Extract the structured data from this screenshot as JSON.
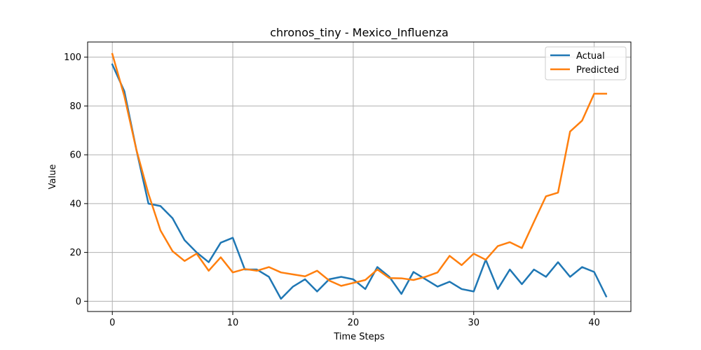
{
  "chart_data": {
    "type": "line",
    "title": "chronos_tiny - Mexico_Influenza",
    "xlabel": "Time Steps",
    "ylabel": "Value",
    "xlim": [
      -2.05,
      43.05
    ],
    "ylim": [
      -4.2,
      106.2
    ],
    "xticks": [
      0,
      10,
      20,
      30,
      40
    ],
    "yticks": [
      0,
      20,
      40,
      60,
      80,
      100
    ],
    "grid": true,
    "legend_position": "upper right",
    "x": [
      0,
      1,
      2,
      3,
      4,
      5,
      6,
      7,
      8,
      9,
      10,
      11,
      12,
      13,
      14,
      15,
      16,
      17,
      18,
      19,
      20,
      21,
      22,
      23,
      24,
      25,
      26,
      27,
      28,
      29,
      30,
      31,
      32,
      33,
      34,
      35,
      36,
      37,
      38,
      39,
      40,
      41
    ],
    "series": [
      {
        "name": "Actual",
        "color": "#1f77b4",
        "values": [
          97,
          86,
          62,
          40,
          39,
          34,
          25,
          20,
          16,
          24,
          26,
          13,
          13,
          10,
          1,
          6,
          9,
          4,
          9,
          10,
          9,
          5,
          14,
          10,
          3,
          12,
          9,
          6,
          8,
          5,
          4,
          17,
          5,
          13,
          7,
          13,
          10,
          16,
          10,
          14,
          12,
          2
        ]
      },
      {
        "name": "Predicted",
        "color": "#ff7f0e",
        "values": [
          101.3,
          84,
          62,
          44,
          29,
          20.5,
          16.5,
          19.5,
          12.5,
          18,
          11.8,
          13.2,
          12.5,
          14,
          11.8,
          11,
          10.2,
          12.5,
          8.5,
          6.3,
          7.5,
          8.7,
          13,
          9.5,
          9.4,
          8.7,
          10,
          11.8,
          18.6,
          14.8,
          19.5,
          17,
          22.6,
          24.2,
          21.8,
          32.5,
          43,
          44.5,
          69.5,
          74,
          85,
          85
        ]
      }
    ]
  }
}
